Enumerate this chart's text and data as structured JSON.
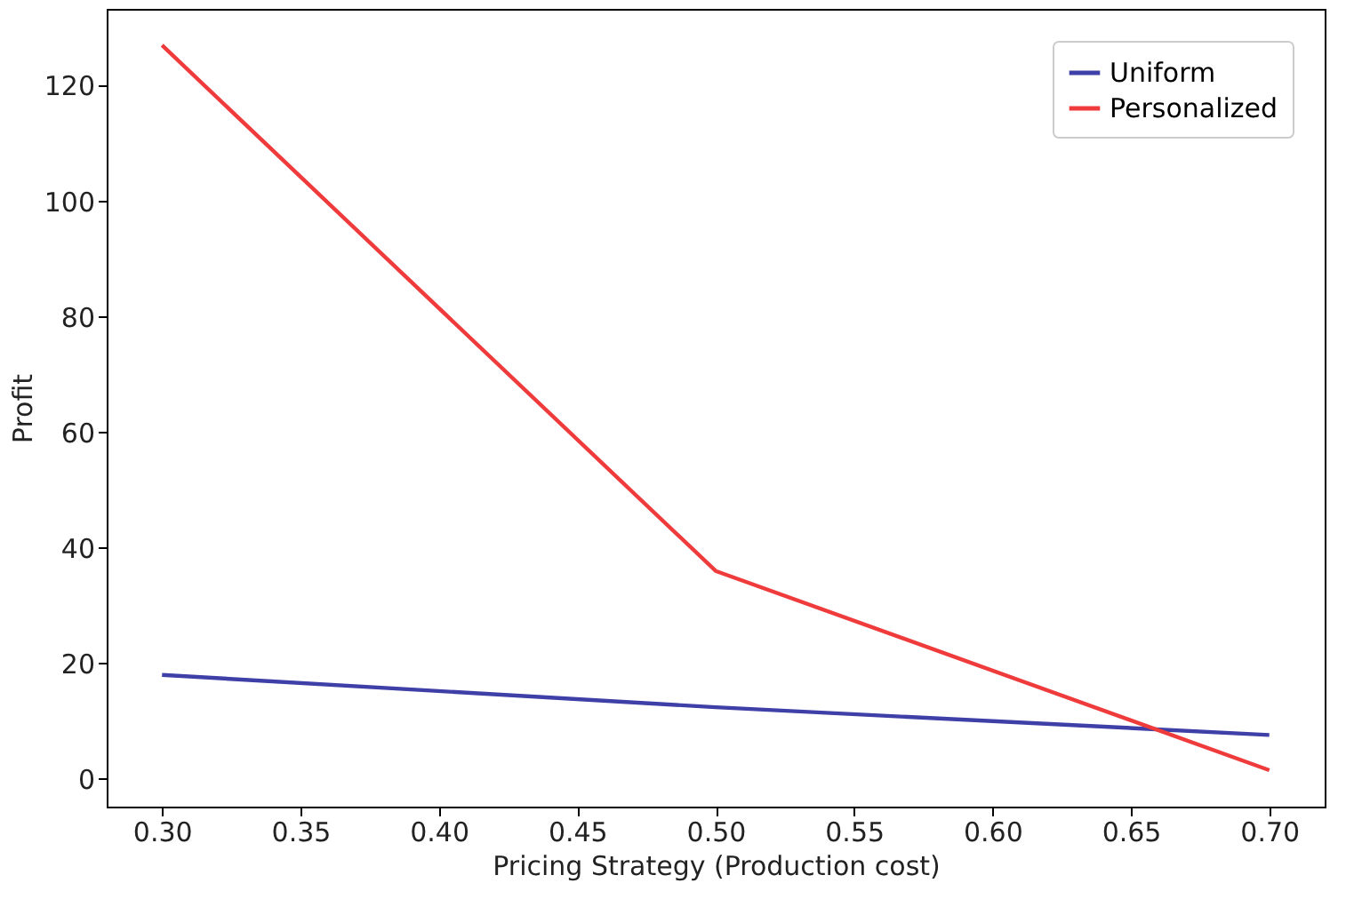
{
  "chart_data": {
    "type": "line",
    "xlabel": "Pricing Strategy (Production cost)",
    "ylabel": "Profit",
    "x": [
      0.3,
      0.5,
      0.7
    ],
    "series": [
      {
        "name": "Uniform",
        "color": "#3f3fa8",
        "values": [
          18,
          12.4,
          7.6
        ]
      },
      {
        "name": "Personalized",
        "color": "#ef3b3b",
        "values": [
          127,
          36,
          1.5
        ]
      }
    ],
    "xlim": [
      0.28,
      0.72
    ],
    "xticks": [
      {
        "value": 0.3,
        "label": "0.30"
      },
      0.35,
      {
        "value": 0.4,
        "label": "0.40"
      },
      0.45,
      {
        "value": 0.5,
        "label": "0.50"
      },
      0.55,
      {
        "value": 0.6,
        "label": "0.60"
      },
      0.65,
      {
        "value": 0.7,
        "label": "0.70"
      }
    ],
    "ylim": [
      -4.8,
      133.3
    ],
    "yticks": [
      0,
      20,
      40,
      60,
      80,
      100,
      120
    ],
    "grid": false,
    "legend": "top right",
    "line_style": "solid",
    "marker": "none"
  }
}
